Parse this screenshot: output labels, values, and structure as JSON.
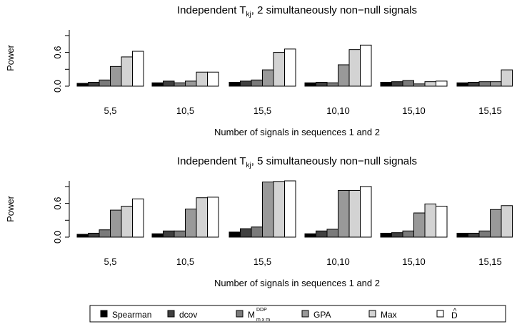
{
  "chart_data": [
    {
      "type": "bar",
      "title": "Independent T",
      "title_sub": "kj",
      "title_rest": ", 2 simultaneously non−null signals",
      "xlabel": "Number of signals in sequences 1 and 2",
      "ylabel": "Power",
      "ylim": [
        0,
        1
      ],
      "yticks": [
        "0.0",
        "0.6"
      ],
      "categories": [
        "5,5",
        "10,5",
        "15,5",
        "10,10",
        "15,10",
        "15,15"
      ],
      "series": [
        {
          "name": "Spearman",
          "color": "#000000",
          "values": [
            0.05,
            0.06,
            0.07,
            0.06,
            0.07,
            0.06
          ]
        },
        {
          "name": "dcov",
          "color": "#404040",
          "values": [
            0.07,
            0.09,
            0.09,
            0.07,
            0.08,
            0.07
          ]
        },
        {
          "name": "M",
          "color": "#7a7a7a",
          "values": [
            0.11,
            0.06,
            0.11,
            0.06,
            0.1,
            0.08
          ]
        },
        {
          "name": "GPA",
          "color": "#999999",
          "values": [
            0.35,
            0.09,
            0.29,
            0.38,
            0.04,
            0.08
          ]
        },
        {
          "name": "Max",
          "color": "#d3d3d3",
          "values": [
            0.52,
            0.25,
            0.6,
            0.65,
            0.08,
            0.29
          ]
        },
        {
          "name": "D",
          "color": "#ffffff",
          "values": [
            0.62,
            0.25,
            0.66,
            0.73,
            0.09,
            0.31
          ]
        }
      ]
    },
    {
      "type": "bar",
      "title": "Independent T",
      "title_sub": "kj",
      "title_rest": ", 5 simultaneously non−null signals",
      "xlabel": "Number of signals in sequences 1 and 2",
      "ylabel": "Power",
      "ylim": [
        0,
        1
      ],
      "yticks": [
        "0.0",
        "0.6"
      ],
      "categories": [
        "5,5",
        "10,5",
        "15,5",
        "10,10",
        "15,10",
        "15,15"
      ],
      "series": [
        {
          "name": "Spearman",
          "color": "#000000",
          "values": [
            0.05,
            0.06,
            0.09,
            0.06,
            0.07,
            0.07
          ]
        },
        {
          "name": "dcov",
          "color": "#404040",
          "values": [
            0.07,
            0.11,
            0.15,
            0.11,
            0.08,
            0.07
          ]
        },
        {
          "name": "M",
          "color": "#7a7a7a",
          "values": [
            0.13,
            0.11,
            0.18,
            0.14,
            0.11,
            0.11
          ]
        },
        {
          "name": "GPA",
          "color": "#999999",
          "values": [
            0.48,
            0.5,
            0.98,
            0.83,
            0.43,
            0.49
          ]
        },
        {
          "name": "Max",
          "color": "#d3d3d3",
          "values": [
            0.55,
            0.7,
            0.99,
            0.83,
            0.59,
            0.56
          ]
        },
        {
          "name": "D",
          "color": "#ffffff",
          "values": [
            0.68,
            0.71,
            1.0,
            0.9,
            0.55,
            0.55
          ]
        }
      ]
    }
  ],
  "legend": {
    "items": [
      {
        "label": "Spearman",
        "color": "#000000"
      },
      {
        "label": "dcov",
        "color": "#404040"
      },
      {
        "label": "M",
        "sup": "DDP",
        "sub": "m x m",
        "color": "#7a7a7a"
      },
      {
        "label": "GPA",
        "color": "#999999"
      },
      {
        "label": "Max",
        "color": "#d3d3d3"
      },
      {
        "label": "D",
        "hat": "^",
        "color": "#ffffff"
      }
    ]
  }
}
